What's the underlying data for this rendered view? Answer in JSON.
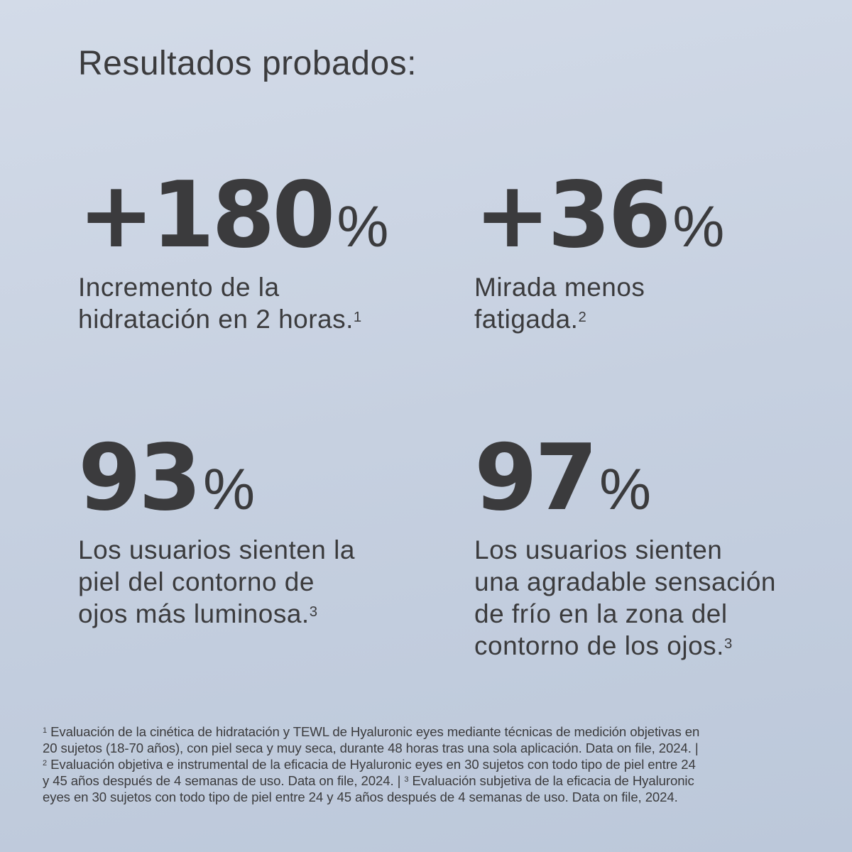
{
  "title": "Resultados probados:",
  "stats": [
    {
      "value": "+180",
      "unit": "%",
      "lines": [
        "Incremento de la",
        "hidratación en 2 horas."
      ],
      "note": "1"
    },
    {
      "value": "+36",
      "unit": "%",
      "lines": [
        "Mirada menos",
        "fatigada."
      ],
      "note": "2"
    },
    {
      "value": "93",
      "unit": "%",
      "lines": [
        "Los usuarios sienten la",
        "piel del contorno de",
        "ojos más luminosa."
      ],
      "note": "3"
    },
    {
      "value": "97",
      "unit": "%",
      "lines": [
        "Los usuarios sienten",
        "una agradable sensación",
        "de frío en la zona del",
        "contorno de los ojos."
      ],
      "note": "3"
    }
  ],
  "footnotes": {
    "n1": "1",
    "l1": "Evaluación de la cinética de hidratación y TEWL de Hyaluronic eyes mediante técnicas de medición objetivas en",
    "l2": "20 sujetos (18-70 años), con piel seca y muy seca, durante 48 horas tras una sola aplicación. Data on file, 2024. |",
    "n2": "2",
    "l3": "Evaluación objetiva e instrumental de la eficacia de Hyaluronic eyes en 30 sujetos con todo tipo de piel entre 24",
    "l4a": "y 45 años después de 4 semanas de uso. Data on file, 2024. |",
    "n3": "3",
    "l4b": "Evaluación subjetiva de la eficacia de Hyaluronic",
    "l5": "eyes en 30 sujetos con todo tipo de piel entre 24 y 45 años después de 4 semanas de uso. Data on file, 2024."
  },
  "colors": {
    "text": "#3b3b3d",
    "background": "#c6d0e0"
  }
}
